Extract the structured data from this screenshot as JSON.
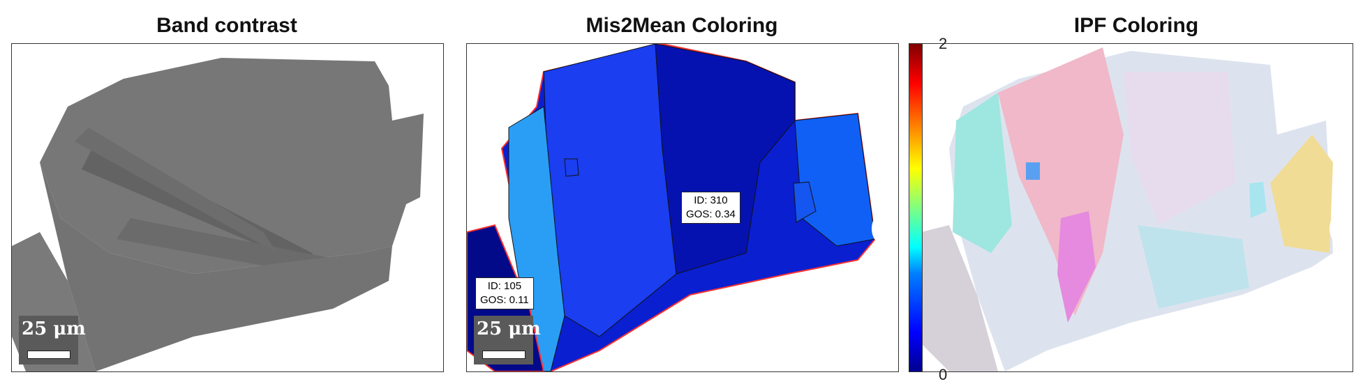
{
  "panels": [
    {
      "title": "Band contrast"
    },
    {
      "title": "Mis2Mean Coloring"
    },
    {
      "title": "IPF Coloring"
    }
  ],
  "scalebar": {
    "label": "25 μm"
  },
  "tooltips": [
    {
      "id_line": "ID: 310",
      "gos_line": "GOS: 0.34"
    },
    {
      "id_line": "ID: 105",
      "gos_line": "GOS: 0.11"
    }
  ],
  "colorbar": {
    "max": "2",
    "min": "0"
  },
  "colors": {
    "band_gray": "#777777",
    "boundary_red": "#ff3030"
  }
}
